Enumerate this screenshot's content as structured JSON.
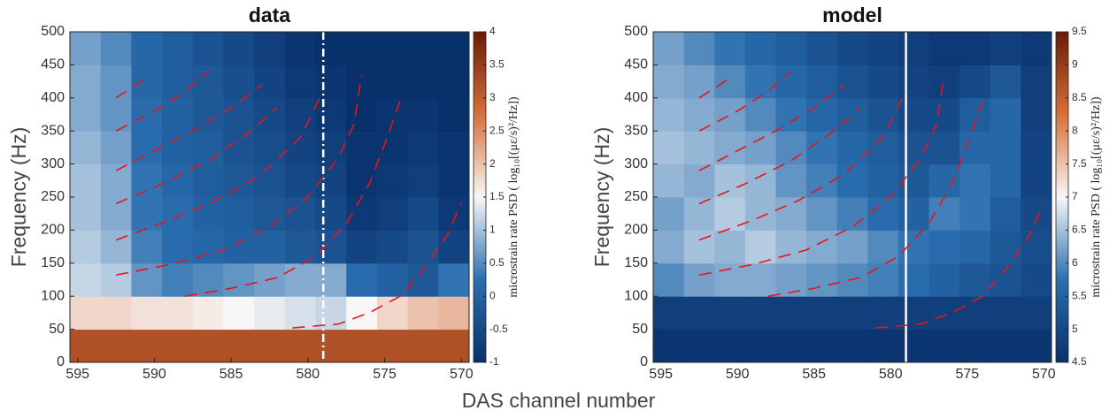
{
  "figure": {
    "xlabel": "DAS channel number"
  },
  "colormap": [
    "#08306b",
    "#2a6fb0",
    "#f7f7f7",
    "#d8703a",
    "#6b1a06"
  ],
  "curve_color": "#e8141b",
  "chart_data": [
    {
      "type": "heatmap",
      "title": "data",
      "ylabel": "Frequency (Hz)",
      "xlim": [
        595.5,
        569.5
      ],
      "xticks": [
        595,
        590,
        585,
        580,
        575,
        570
      ],
      "ylim": [
        0,
        500
      ],
      "yticks": [
        0,
        50,
        100,
        150,
        200,
        250,
        300,
        350,
        400,
        450,
        500
      ],
      "x_bins": [
        595.5,
        593.5,
        591.5,
        589.5,
        587.5,
        585.5,
        583.5,
        581.5,
        579.5,
        577.5,
        575.5,
        573.5,
        571.5,
        569.5
      ],
      "y_bins": [
        0,
        50,
        100,
        150,
        200,
        250,
        300,
        350,
        400,
        450,
        500
      ],
      "z": [
        [
          3.2,
          3.2,
          3.2,
          3.2,
          3.2,
          3.2,
          3.2,
          3.2,
          3.2,
          3.2,
          3.2,
          3.2,
          3.2
        ],
        [
          1.8,
          1.8,
          1.7,
          1.7,
          1.6,
          1.5,
          1.4,
          1.3,
          1.2,
          1.5,
          1.8,
          2.0,
          2.1
        ],
        [
          1.2,
          1.1,
          0.6,
          0.4,
          0.5,
          0.6,
          0.7,
          0.8,
          0.8,
          0.2,
          0,
          -0.2,
          0.3
        ],
        [
          1.1,
          0.9,
          0.4,
          0.2,
          0.1,
          0,
          0,
          -0.2,
          -0.3,
          -0.6,
          -0.5,
          -0.3,
          -0.6
        ],
        [
          1.0,
          0.8,
          0.3,
          0.2,
          0,
          -0.1,
          -0.2,
          -0.3,
          -0.5,
          -0.8,
          -0.7,
          -0.5,
          -0.8
        ],
        [
          1.0,
          0.8,
          0.3,
          0.1,
          -0.1,
          -0.2,
          -0.3,
          -0.5,
          -0.6,
          -0.9,
          -0.8,
          -0.7,
          -0.9
        ],
        [
          0.9,
          0.7,
          0.2,
          0,
          -0.1,
          -0.3,
          -0.4,
          -0.6,
          -0.7,
          -0.9,
          -0.9,
          -0.8,
          -0.9
        ],
        [
          0.8,
          0.6,
          0.2,
          0,
          -0.2,
          -0.3,
          -0.5,
          -0.7,
          -0.8,
          -1,
          -0.9,
          -0.9,
          -1
        ],
        [
          0.8,
          0.6,
          0.1,
          -0.1,
          -0.2,
          -0.4,
          -0.6,
          -0.8,
          -0.9,
          -1,
          -1,
          -1,
          -1
        ],
        [
          0.7,
          0.5,
          0.1,
          -0.1,
          -0.3,
          -0.5,
          -0.7,
          -0.9,
          -1,
          -1,
          -1,
          -1,
          -1
        ]
      ],
      "colorbar": {
        "label": "microstrain rate PSD ( log₁₀[(με/s)²/Hz])",
        "lim": [
          -1,
          4
        ],
        "ticks": [
          -1,
          -0.5,
          0,
          0.5,
          1,
          1.5,
          2,
          2.5,
          3,
          3.5,
          4
        ]
      },
      "vline": {
        "x": 579,
        "color": "#ffffff",
        "dash": "dashdot"
      },
      "curves": [
        {
          "x": [
            581,
            578,
            576,
            574,
            572.5,
            571,
            570
          ],
          "y": [
            52,
            58,
            75,
            100,
            140,
            190,
            240
          ]
        },
        {
          "x": [
            588,
            585,
            582,
            579.5,
            577.5,
            576,
            575,
            574
          ],
          "y": [
            100,
            112,
            128,
            160,
            210,
            270,
            330,
            395
          ]
        },
        {
          "x": [
            592.5,
            589,
            585.5,
            582.5,
            580,
            578,
            577,
            576.5
          ],
          "y": [
            132,
            148,
            170,
            205,
            250,
            310,
            360,
            435
          ]
        },
        {
          "x": [
            592.5,
            589,
            586,
            583,
            580.5,
            579
          ],
          "y": [
            185,
            215,
            245,
            285,
            340,
            410
          ]
        },
        {
          "x": [
            592.5,
            589.5,
            586.5,
            584,
            582
          ],
          "y": [
            240,
            270,
            305,
            345,
            385
          ]
        },
        {
          "x": [
            592.5,
            590,
            587.5,
            585,
            583
          ],
          "y": [
            290,
            320,
            350,
            385,
            420
          ]
        },
        {
          "x": [
            592.5,
            590,
            588,
            586.5
          ],
          "y": [
            350,
            380,
            410,
            440
          ]
        },
        {
          "x": [
            592.5,
            590.5
          ],
          "y": [
            400,
            430
          ]
        }
      ]
    },
    {
      "type": "heatmap",
      "title": "model",
      "ylabel": "Frequency (Hz)",
      "xlim": [
        595.5,
        569.5
      ],
      "xticks": [
        595,
        590,
        585,
        580,
        575,
        570
      ],
      "ylim": [
        0,
        500
      ],
      "yticks": [
        0,
        50,
        100,
        150,
        200,
        250,
        300,
        350,
        400,
        450,
        500
      ],
      "x_bins": [
        595.5,
        593.5,
        591.5,
        589.5,
        587.5,
        585.5,
        583.5,
        581.5,
        579.5,
        577.5,
        575.5,
        573.5,
        571.5,
        569.5
      ],
      "y_bins": [
        0,
        50,
        100,
        150,
        200,
        250,
        300,
        350,
        400,
        450,
        500
      ],
      "z": [
        [
          4.6,
          4.6,
          4.6,
          4.6,
          4.6,
          4.6,
          4.6,
          4.6,
          4.6,
          4.6,
          4.6,
          4.6,
          4.6
        ],
        [
          4.8,
          4.8,
          4.8,
          4.8,
          4.8,
          4.8,
          4.8,
          4.8,
          4.8,
          4.8,
          4.8,
          4.8,
          4.8
        ],
        [
          6.0,
          6.2,
          6.3,
          6.3,
          6.2,
          6.1,
          6.0,
          5.9,
          5.7,
          5.5,
          5.3,
          5.2,
          5.0
        ],
        [
          6.3,
          6.5,
          6.4,
          6.6,
          6.4,
          6.3,
          6.2,
          6.0,
          5.8,
          5.7,
          5.6,
          5.3,
          5.1
        ],
        [
          6.2,
          6.4,
          6.6,
          6.4,
          6.3,
          6.1,
          5.9,
          5.7,
          5.5,
          5.9,
          5.8,
          5.4,
          5.0
        ],
        [
          6.4,
          6.3,
          6.5,
          6.4,
          6.1,
          5.9,
          5.7,
          5.5,
          5.3,
          5.6,
          5.8,
          5.6,
          4.9
        ],
        [
          6.5,
          6.4,
          6.3,
          6.2,
          6.0,
          5.8,
          5.6,
          5.4,
          5.2,
          5.2,
          5.6,
          5.6,
          4.9
        ],
        [
          6.4,
          6.3,
          6.2,
          6.0,
          5.8,
          5.6,
          5.4,
          5.2,
          5.0,
          5.0,
          5.4,
          5.6,
          4.8
        ],
        [
          6.3,
          6.2,
          6.0,
          5.8,
          5.6,
          5.4,
          5.2,
          5.0,
          4.9,
          4.8,
          5.0,
          5.3,
          4.8
        ],
        [
          6.2,
          6.0,
          5.8,
          5.6,
          5.4,
          5.2,
          5.0,
          4.9,
          4.8,
          4.7,
          4.7,
          4.8,
          4.7
        ]
      ],
      "colorbar": {
        "label": "microstrain rate PSD ( log₁₀[(με/s)²/Hz])",
        "lim": [
          4.5,
          9.5
        ],
        "ticks": [
          4.5,
          5,
          5.5,
          6,
          6.5,
          7,
          7.5,
          8,
          8.5,
          9,
          9.5
        ]
      },
      "vline": {
        "x": 579,
        "color": "#ffffff",
        "dash": "solid"
      },
      "curves": [
        {
          "x": [
            581,
            578,
            576,
            574,
            572.5,
            571,
            570
          ],
          "y": [
            52,
            58,
            75,
            100,
            140,
            190,
            240
          ]
        },
        {
          "x": [
            588,
            585,
            582,
            579.5,
            577.5,
            576,
            575,
            574
          ],
          "y": [
            100,
            112,
            128,
            160,
            210,
            270,
            330,
            395
          ]
        },
        {
          "x": [
            592.5,
            589,
            585.5,
            582.5,
            580,
            578,
            577,
            576.5
          ],
          "y": [
            132,
            148,
            170,
            205,
            250,
            310,
            360,
            435
          ]
        },
        {
          "x": [
            592.5,
            589,
            586,
            583,
            580.5,
            579
          ],
          "y": [
            185,
            215,
            245,
            285,
            340,
            410
          ]
        },
        {
          "x": [
            592.5,
            589.5,
            586.5,
            584,
            582
          ],
          "y": [
            240,
            270,
            305,
            345,
            385
          ]
        },
        {
          "x": [
            592.5,
            590,
            587.5,
            585,
            583
          ],
          "y": [
            290,
            320,
            350,
            385,
            420
          ]
        },
        {
          "x": [
            592.5,
            590,
            588,
            586.5
          ],
          "y": [
            350,
            380,
            410,
            440
          ]
        },
        {
          "x": [
            592.5,
            590.5
          ],
          "y": [
            400,
            430
          ]
        }
      ]
    }
  ]
}
